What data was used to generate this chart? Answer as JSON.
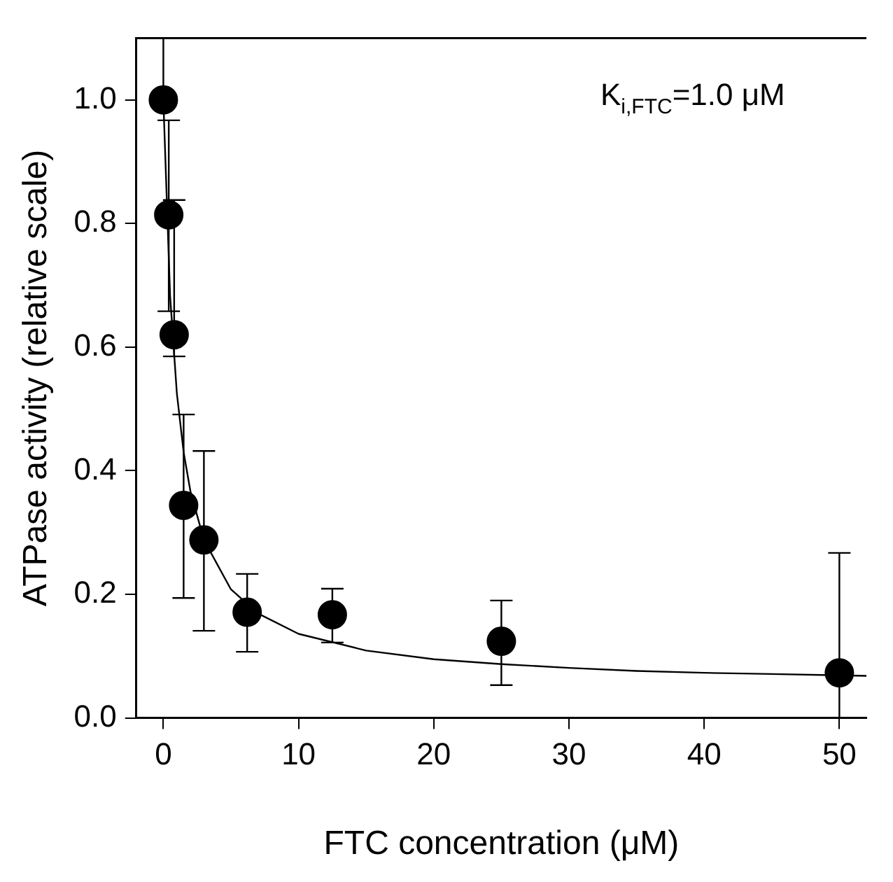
{
  "chart_data": {
    "type": "scatter",
    "xlabel": "FTC concentration (μM)",
    "ylabel": "ATPase activity (relative scale)",
    "annotations": [
      "K$_{i,FTC}$=1.0 μM"
    ],
    "series": [
      {
        "color": "#000000",
        "marker": "circle",
        "x": [
          0,
          0.4,
          0.8,
          1.5,
          3.0,
          6.2,
          12.5,
          25,
          50
        ],
        "values": [
          1.0,
          0.814,
          0.62,
          0.344,
          0.288,
          0.171,
          0.167,
          0.124,
          0.073
        ],
        "errors": [
          [
            1.0,
            1.1
          ],
          [
            0.658,
            0.967
          ],
          [
            0.585,
            0.838
          ],
          [
            0.194,
            0.491
          ],
          [
            0.141,
            0.432
          ],
          [
            0.107,
            0.233
          ],
          [
            0.122,
            0.209
          ],
          [
            0.053,
            0.19
          ],
          [
            0,
            0.267
          ]
        ]
      },
      {
        "type": "line",
        "color": "#000000",
        "marker": "none",
        "line_style": "solid",
        "x": [
          0,
          0.5,
          1,
          1.5,
          2,
          3,
          5,
          7,
          10,
          15,
          20,
          25,
          30,
          35,
          40,
          45,
          50,
          52
        ],
        "values": [
          1.0,
          0.683,
          0.525,
          0.43,
          0.367,
          0.288,
          0.208,
          0.169,
          0.136,
          0.109,
          0.095,
          0.087,
          0.081,
          0.076,
          0.073,
          0.071,
          0.069,
          0.068
        ]
      }
    ],
    "xlim": [
      -2,
      52
    ],
    "xticks": [
      0,
      10,
      20,
      30,
      40,
      50
    ],
    "ylim": [
      0,
      1.1
    ],
    "yticks": [
      {
        "value": 0,
        "label": "0.0"
      },
      {
        "value": 0.2,
        "label": "0.2"
      },
      {
        "value": 0.4,
        "label": "0.4"
      },
      {
        "value": 0.6,
        "label": "0.6"
      },
      {
        "value": 0.8,
        "label": "0.8"
      },
      {
        "value": 1.0,
        "label": "1.0"
      }
    ],
    "grid": false,
    "legend": false
  }
}
